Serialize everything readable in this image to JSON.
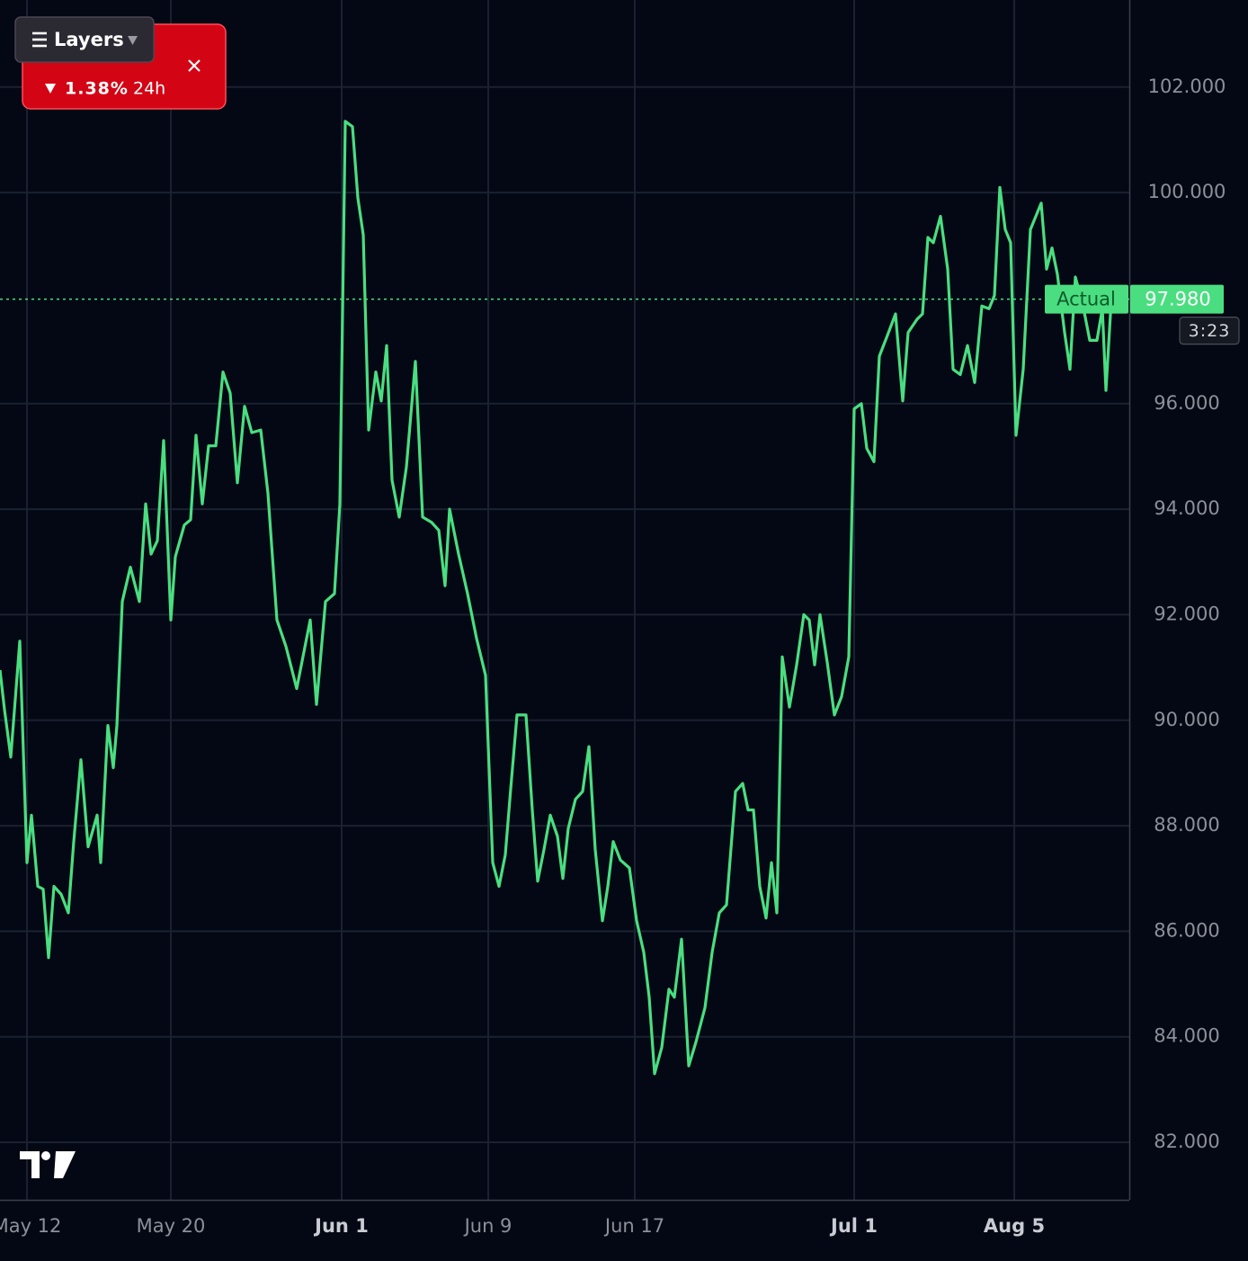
{
  "chart_data": {
    "type": "line",
    "x": [
      0,
      5,
      12,
      22,
      30,
      35,
      42,
      48,
      54,
      60,
      68,
      76,
      82,
      90,
      98,
      108,
      112,
      120,
      126,
      130,
      136,
      145,
      155,
      162,
      168,
      175,
      182,
      190,
      195,
      205,
      212,
      218,
      225,
      232,
      240,
      248,
      256,
      264,
      272,
      280,
      290,
      298,
      308,
      318,
      330,
      345,
      352,
      362,
      372,
      378,
      384,
      392,
      398,
      404,
      410,
      418,
      424,
      430,
      436,
      444,
      452,
      462,
      470,
      480,
      488,
      495,
      500,
      510,
      520,
      530,
      540,
      548,
      555,
      562,
      568,
      575,
      585,
      592,
      598,
      605,
      612,
      620,
      626,
      632,
      640,
      648,
      655,
      662,
      670,
      676,
      682,
      690,
      700,
      708,
      716,
      722,
      728,
      736,
      744,
      750,
      758,
      766,
      774,
      784,
      792,
      800,
      808,
      818,
      826,
      832,
      838,
      845,
      852,
      858,
      864,
      870,
      878,
      886,
      894,
      900,
      906,
      912,
      920,
      928,
      936,
      944,
      950,
      958,
      964,
      972,
      978,
      986,
      996,
      1004,
      1010,
      1020,
      1026,
      1032,
      1038,
      1046,
      1054,
      1060,
      1068,
      1076,
      1084,
      1092,
      1100,
      1106,
      1112,
      1118,
      1124,
      1130,
      1138,
      1146,
      1158,
      1164,
      1170,
      1176,
      1184,
      1190,
      1196,
      1204,
      1212,
      1220,
      1226,
      1230,
      1236
    ],
    "series": [
      {
        "name": "Actual",
        "color": "#4ade80",
        "values": [
          90.95,
          90.2,
          89.3,
          91.5,
          87.3,
          88.2,
          86.85,
          86.8,
          85.5,
          86.85,
          86.7,
          86.35,
          87.7,
          89.25,
          87.6,
          88.2,
          87.3,
          89.9,
          89.1,
          89.9,
          92.25,
          92.9,
          92.25,
          94.1,
          93.15,
          93.4,
          95.3,
          91.9,
          93.1,
          93.7,
          93.8,
          95.4,
          94.1,
          95.2,
          95.2,
          96.6,
          96.2,
          94.5,
          95.95,
          95.45,
          95.5,
          94.3,
          91.9,
          91.4,
          90.6,
          91.9,
          90.3,
          92.25,
          92.4,
          94.1,
          101.35,
          101.25,
          99.9,
          99.2,
          95.5,
          96.6,
          96.05,
          97.1,
          94.55,
          93.85,
          94.8,
          96.8,
          93.85,
          93.75,
          93.6,
          92.55,
          94.0,
          93.15,
          92.4,
          91.55,
          90.85,
          87.3,
          86.85,
          87.45,
          88.7,
          90.1,
          90.1,
          88.3,
          86.95,
          87.55,
          88.2,
          87.8,
          87.0,
          87.95,
          88.5,
          88.65,
          89.5,
          87.55,
          86.2,
          86.85,
          87.7,
          87.35,
          87.2,
          86.2,
          85.6,
          84.75,
          83.3,
          83.8,
          84.9,
          84.75,
          85.85,
          83.45,
          83.9,
          84.55,
          85.6,
          86.35,
          86.5,
          88.65,
          88.8,
          88.3,
          88.3,
          86.85,
          86.25,
          87.3,
          86.35,
          91.2,
          90.25,
          91.05,
          92.0,
          91.9,
          91.05,
          92.0,
          91.1,
          90.1,
          90.45,
          91.2,
          95.9,
          96.0,
          95.15,
          94.9,
          96.9,
          97.25,
          97.7,
          96.05,
          97.35,
          97.6,
          97.7,
          99.15,
          99.05,
          99.55,
          98.55,
          96.65,
          96.55,
          97.1,
          96.4,
          97.85,
          97.8,
          98.05,
          100.1,
          99.3,
          99.05,
          95.4,
          96.65,
          99.3,
          99.8,
          98.55,
          98.95,
          98.45,
          97.35,
          96.65,
          98.4,
          97.9,
          97.2,
          97.2,
          97.8,
          96.25,
          97.98
        ]
      }
    ],
    "xlim": [
      0,
      1256
    ],
    "xticks": [
      {
        "value": 30,
        "label": "May 12"
      },
      {
        "value": 190,
        "label": "May 20"
      },
      {
        "value": 380,
        "label": "Jun 1"
      },
      {
        "value": 543,
        "label": "Jun 9"
      },
      {
        "value": 706,
        "label": "Jun 17"
      },
      {
        "value": 950,
        "label": "Jul 1"
      },
      {
        "value": 1128,
        "label": "Aug 5"
      }
    ],
    "ylim": [
      80.91,
      103.65
    ],
    "yticks": [
      {
        "value": 82,
        "label": "82.000"
      },
      {
        "value": 84,
        "label": "84.000"
      },
      {
        "value": 86,
        "label": "86.000"
      },
      {
        "value": 88,
        "label": "88.000"
      },
      {
        "value": 90,
        "label": "90.000"
      },
      {
        "value": 92,
        "label": "92.000"
      },
      {
        "value": 94,
        "label": "94.000"
      },
      {
        "value": 96,
        "label": "96.000"
      },
      {
        "value": 100,
        "label": "100.000"
      },
      {
        "value": 102,
        "label": "102.000"
      }
    ],
    "grid": true,
    "last_price": {
      "value": 97.98,
      "label": "97.980"
    },
    "countdown": "3:23"
  },
  "ui": {
    "layers_button": "Layers",
    "badge": {
      "change": "1.38%",
      "period": "24h"
    }
  }
}
